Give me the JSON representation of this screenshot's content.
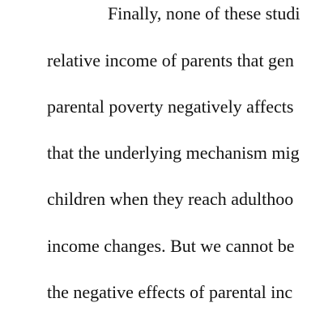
{
  "document": {
    "lines": [
      "Finally, none of these studi",
      "relative income of parents that gen",
      "parental poverty negatively affects",
      "that the underlying mechanism mig",
      "children when they reach adulthoo",
      "income changes. But we cannot be",
      "the negative effects of parental inc"
    ]
  }
}
